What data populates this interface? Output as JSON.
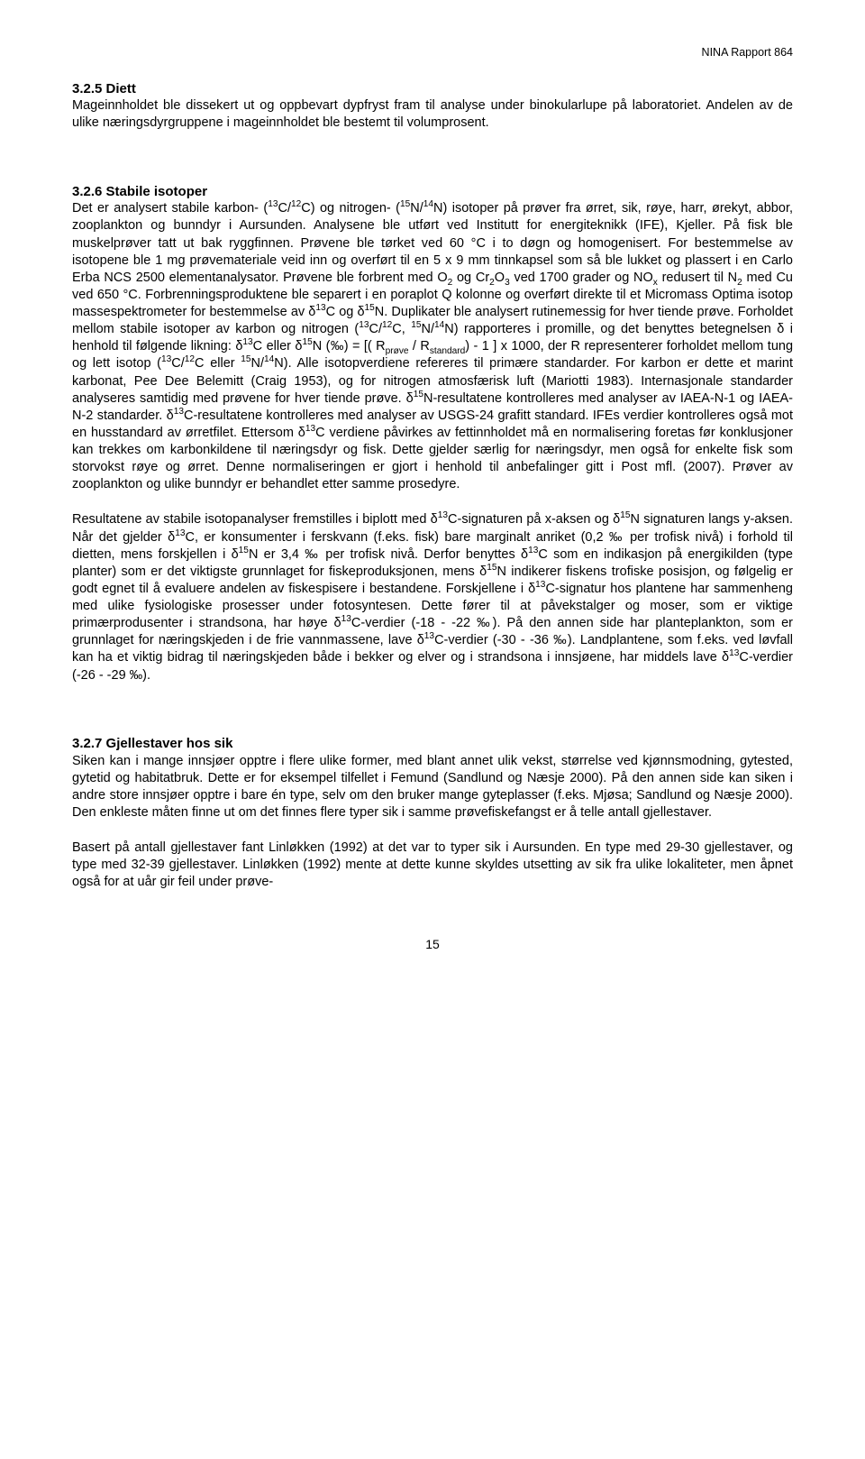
{
  "header": {
    "report_ref": "NINA Rapport 864"
  },
  "s325": {
    "heading": "3.2.5 Diett",
    "body": "Mageinnholdet ble dissekert ut og oppbevart dypfryst fram til analyse under binokularlupe på laboratoriet. Andelen av de ulike næringsdyrgruppene i mageinnholdet ble bestemt til volumprosent."
  },
  "s326": {
    "heading": "3.2.6 Stabile isotoper",
    "body_html": "Det er analysert stabile karbon- (<sup>13</sup>C/<sup>12</sup>C) og nitrogen- (<sup>15</sup>N/<sup>14</sup>N) isotoper på prøver fra ørret, sik, røye, harr, ørekyt, abbor, zooplankton og bunndyr i Aursunden. Analysene ble utført ved Institutt for energiteknikk (IFE), Kjeller. På fisk ble muskelprøver tatt ut bak ryggfinnen. Prøvene ble tørket ved 60 °C i to døgn og homogenisert. For bestemmelse av isotopene ble 1 mg prøvemateriale veid inn og overført til en 5 x 9 mm tinnkapsel som så ble lukket og plassert i en Carlo Erba NCS 2500 elementanalysator. Prøvene ble forbrent med O<sub>2</sub> og Cr<sub>2</sub>O<sub>3</sub> ved 1700 grader og NO<sub>x</sub> redusert til N<sub>2</sub> med Cu ved 650 °C. Forbrenningsproduktene ble separert i en poraplot Q kolonne og overført direkte til et Micromass Optima isotop massespektrometer for bestemmelse av δ<sup>13</sup>C og δ<sup>15</sup>N. Duplikater ble analysert rutinemessig for hver tiende prøve. Forholdet mellom stabile isotoper av karbon og nitrogen (<sup>13</sup>C/<sup>12</sup>C, <sup>15</sup>N/<sup>14</sup>N) rapporteres i promille, og det benyttes betegnelsen δ i henhold til følgende likning: δ<sup>13</sup>C eller δ<sup>15</sup>N (‰) = [( R<sub>prøve</sub> / R<sub>standard</sub>) - 1 ] x 1000, der R representerer forholdet mellom tung og lett isotop (<sup>13</sup>C/<sup>12</sup>C eller <sup>15</sup>N/<sup>14</sup>N). Alle isotopverdiene refereres til primære standarder. For karbon er dette et marint karbonat, Pee Dee Belemitt (Craig 1953), og for nitrogen atmosfærisk luft (Mariotti 1983). Internasjonale standarder analyseres samtidig med prøvene for hver tiende prøve. δ<sup>15</sup>N-resultatene kontrolleres med analyser av IAEA-N-1 og IAEA-N-2 standarder. δ<sup>13</sup>C-resultatene kontrolleres med analyser av USGS-24 grafitt standard. IFEs verdier kontrolleres også mot en husstandard av ørretfilet. Ettersom δ<sup>13</sup>C verdiene påvirkes av fettinnholdet må en normalisering foretas før konklusjoner kan trekkes om karbonkildene til næringsdyr og fisk. Dette gjelder særlig for næringsdyr, men også for enkelte fisk som storvokst røye og ørret. Denne normaliseringen er gjort i henhold til anbefalinger gitt i Post mfl. (2007). Prøver av zooplankton og ulike bunndyr er behandlet etter samme prosedyre.",
    "body2_html": "Resultatene av stabile isotopanalyser fremstilles i biplott med δ<sup>13</sup>C-signaturen på x-aksen og δ<sup>15</sup>N signaturen langs y-aksen. Når det gjelder δ<sup>13</sup>C, er konsumenter i ferskvann (f.eks. fisk) bare marginalt anriket (0,2 ‰ per trofisk nivå) i forhold til dietten, mens forskjellen i δ<sup>15</sup>N er 3,4 ‰ per trofisk nivå. Derfor benyttes δ<sup>13</sup>C som en indikasjon på energikilden (type planter) som er det viktigste grunnlaget for fiskeproduksjonen, mens δ<sup>15</sup>N indikerer fiskens trofiske posisjon, og følgelig er godt egnet til å evaluere andelen av fiskespisere i bestandene. Forskjellene i δ<sup>13</sup>C-signatur hos plantene har sammenheng med ulike fysiologiske prosesser under fotosyntesen. Dette fører til at påvekstalger og moser, som er viktige primærprodusenter i strandsona, har høye δ<sup>13</sup>C-verdier (-18 - -22 ‰). På den annen side har planteplankton, som er grunnlaget for næringskjeden i de frie vannmassene, lave δ<sup>13</sup>C-verdier (-30 - -36 ‰). Landplantene, som f.eks. ved løvfall kan ha et viktig bidrag til næringskjeden både i bekker og elver og i strandsona i innsjøene, har middels lave δ<sup>13</sup>C-verdier (-26 - -29 ‰)."
  },
  "s327": {
    "heading": "3.2.7 Gjellestaver hos sik",
    "body": "Siken kan i mange innsjøer opptre i flere ulike former, med blant annet ulik vekst, størrelse ved kjønnsmodning, gytested, gytetid og habitatbruk. Dette er for eksempel tilfellet i Femund (Sandlund og Næsje 2000). På den annen side kan siken i andre store innsjøer opptre i bare én type, selv om den bruker mange gyteplasser (f.eks. Mjøsa; Sandlund og Næsje 2000). Den enkleste måten finne ut om det finnes flere typer sik i samme prøvefiskefangst er å telle antall gjellestaver.",
    "body2": "Basert på antall gjellestaver fant Linløkken (1992) at det var to typer sik i Aursunden. En type med 29-30 gjellestaver, og type med 32-39 gjellestaver. Linløkken (1992) mente at dette kunne skyldes utsetting av sik fra ulike lokaliteter, men åpnet også for at uår gir feil under prøve-"
  },
  "page_number": "15"
}
